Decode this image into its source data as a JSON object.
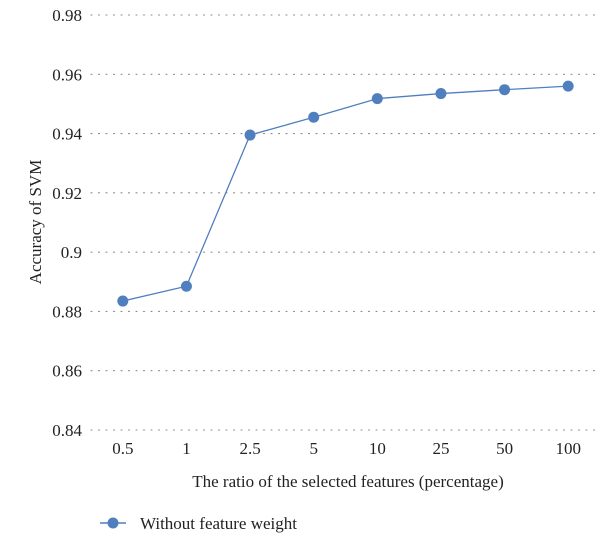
{
  "chart_data": {
    "type": "line",
    "title": "",
    "xlabel": "The ratio of the selected features (percentage)",
    "ylabel": "Accuracy of SVM",
    "categories": [
      "0.5",
      "1",
      "2.5",
      "5",
      "10",
      "25",
      "50",
      "100"
    ],
    "series": [
      {
        "name": "Without feature weight",
        "values": [
          0.8835,
          0.8885,
          0.9395,
          0.9455,
          0.9518,
          0.9535,
          0.9548,
          0.956
        ]
      }
    ],
    "ylim": [
      0.84,
      0.98
    ],
    "yticks": [
      "0.84",
      "0.86",
      "0.88",
      "0.9",
      "0.92",
      "0.94",
      "0.96",
      "0.98"
    ],
    "grid": true,
    "legend_position": "bottom-left",
    "colors": {
      "series": "#4f7fbf",
      "grid": "#8a8a8a"
    }
  }
}
